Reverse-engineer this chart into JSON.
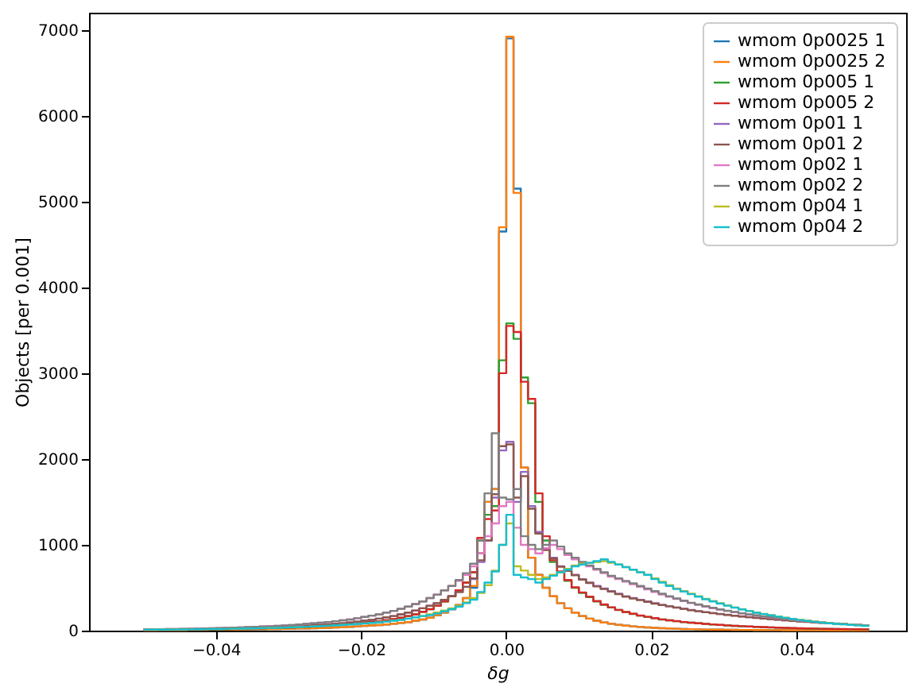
{
  "chart_data": {
    "type": "histogram",
    "xlabel": "δg",
    "ylabel": "Objects [per 0.001]",
    "bins": [
      -0.05,
      -0.049,
      -0.048,
      -0.047,
      -0.046,
      -0.045,
      -0.044,
      -0.043,
      -0.042,
      -0.041,
      -0.04,
      -0.039,
      -0.038,
      -0.037,
      -0.036,
      -0.035,
      -0.034,
      -0.033,
      -0.032,
      -0.031,
      -0.03,
      -0.029,
      -0.028,
      -0.027,
      -0.026,
      -0.025,
      -0.024,
      -0.023,
      -0.022,
      -0.021,
      -0.02,
      -0.019,
      -0.018,
      -0.017,
      -0.016,
      -0.015,
      -0.014,
      -0.013,
      -0.012,
      -0.011,
      -0.01,
      -0.009,
      -0.008,
      -0.007,
      -0.006,
      -0.005,
      -0.004,
      -0.003,
      -0.002,
      -0.001,
      0.0,
      0.001,
      0.002,
      0.003,
      0.004,
      0.005,
      0.006,
      0.007,
      0.008,
      0.009,
      0.01,
      0.011,
      0.012,
      0.013,
      0.014,
      0.015,
      0.016,
      0.017,
      0.018,
      0.019,
      0.02,
      0.021,
      0.022,
      0.023,
      0.024,
      0.025,
      0.026,
      0.027,
      0.028,
      0.029,
      0.03,
      0.031,
      0.032,
      0.033,
      0.034,
      0.035,
      0.036,
      0.037,
      0.038,
      0.039,
      0.04,
      0.041,
      0.042,
      0.043,
      0.044,
      0.045,
      0.046,
      0.047,
      0.048,
      0.049,
      0.05
    ],
    "series": [
      {
        "name": "wmom 0p0025 1",
        "color": "#1f77b4",
        "values": [
          5,
          5,
          6,
          6,
          7,
          7,
          8,
          8,
          9,
          10,
          10,
          11,
          12,
          13,
          14,
          15,
          16,
          18,
          19,
          20,
          22,
          24,
          26,
          28,
          30,
          33,
          36,
          40,
          44,
          50,
          55,
          60,
          65,
          72,
          80,
          90,
          100,
          115,
          130,
          150,
          180,
          210,
          250,
          300,
          380,
          500,
          900,
          1500,
          1650,
          4650,
          6900,
          5150,
          1900,
          850,
          650,
          500,
          400,
          320,
          260,
          210,
          170,
          140,
          115,
          95,
          80,
          68,
          58,
          50,
          43,
          37,
          32,
          28,
          25,
          22,
          19,
          17,
          15,
          13,
          12,
          11,
          10,
          9,
          8,
          8,
          7,
          7,
          6,
          6,
          5,
          5,
          5,
          4,
          4,
          4,
          3,
          3,
          3,
          3,
          2,
          2
        ]
      },
      {
        "name": "wmom 0p0025 2",
        "color": "#ff7f0e",
        "values": [
          5,
          5,
          6,
          6,
          7,
          7,
          8,
          8,
          9,
          10,
          10,
          11,
          12,
          13,
          14,
          15,
          16,
          18,
          19,
          20,
          22,
          24,
          26,
          28,
          30,
          33,
          36,
          40,
          44,
          50,
          55,
          60,
          65,
          72,
          80,
          90,
          100,
          115,
          130,
          150,
          180,
          210,
          250,
          300,
          380,
          520,
          900,
          1500,
          1650,
          4700,
          6920,
          5100,
          1900,
          850,
          650,
          500,
          400,
          320,
          260,
          210,
          170,
          140,
          115,
          95,
          80,
          68,
          58,
          50,
          43,
          37,
          32,
          28,
          25,
          22,
          19,
          17,
          15,
          13,
          12,
          11,
          10,
          9,
          8,
          8,
          7,
          7,
          6,
          6,
          5,
          5,
          5,
          4,
          4,
          4,
          3,
          3,
          3,
          3,
          2,
          2
        ]
      },
      {
        "name": "wmom 0p005 1",
        "color": "#2ca02c",
        "values": [
          8,
          9,
          10,
          10,
          11,
          12,
          13,
          14,
          15,
          16,
          17,
          18,
          20,
          21,
          23,
          25,
          27,
          29,
          31,
          34,
          37,
          40,
          44,
          48,
          52,
          57,
          62,
          68,
          75,
          82,
          90,
          100,
          110,
          120,
          135,
          150,
          170,
          190,
          220,
          250,
          290,
          340,
          400,
          470,
          560,
          680,
          1050,
          1350,
          1450,
          3150,
          3580,
          3400,
          2950,
          2650,
          1500,
          1050,
          800,
          680,
          580,
          500,
          440,
          390,
          340,
          300,
          270,
          240,
          215,
          195,
          175,
          160,
          145,
          130,
          120,
          110,
          100,
          92,
          85,
          78,
          72,
          66,
          60,
          55,
          51,
          47,
          43,
          40,
          37,
          34,
          31,
          29,
          27,
          25,
          23,
          21,
          20,
          18,
          17,
          16,
          15,
          14
        ]
      },
      {
        "name": "wmom 0p005 2",
        "color": "#d62728",
        "values": [
          8,
          9,
          10,
          10,
          11,
          12,
          13,
          14,
          15,
          16,
          17,
          18,
          20,
          21,
          23,
          25,
          27,
          29,
          31,
          34,
          37,
          40,
          44,
          48,
          52,
          57,
          62,
          68,
          75,
          82,
          90,
          100,
          110,
          120,
          135,
          150,
          170,
          190,
          220,
          250,
          290,
          340,
          400,
          470,
          560,
          680,
          1080,
          1300,
          1400,
          3000,
          3550,
          3480,
          2900,
          2700,
          1600,
          1100,
          820,
          690,
          590,
          505,
          445,
          395,
          345,
          305,
          272,
          242,
          217,
          196,
          176,
          161,
          146,
          131,
          121,
          111,
          101,
          93,
          86,
          79,
          73,
          67,
          61,
          56,
          52,
          48,
          44,
          41,
          38,
          35,
          32,
          30,
          28,
          26,
          24,
          22,
          21,
          19,
          18,
          17,
          16,
          15
        ]
      },
      {
        "name": "wmom 0p01 1",
        "color": "#9467bd",
        "values": [
          12,
          13,
          14,
          15,
          16,
          17,
          18,
          19,
          20,
          22,
          23,
          25,
          27,
          29,
          31,
          33,
          36,
          39,
          42,
          45,
          49,
          53,
          57,
          62,
          67,
          73,
          80,
          87,
          95,
          105,
          115,
          125,
          140,
          155,
          170,
          190,
          210,
          235,
          260,
          290,
          320,
          360,
          400,
          450,
          510,
          600,
          800,
          1050,
          1550,
          2100,
          2200,
          1500,
          1850,
          1450,
          1150,
          950,
          850,
          750,
          700,
          650,
          600,
          560,
          520,
          490,
          460,
          430,
          400,
          380,
          360,
          340,
          320,
          300,
          285,
          270,
          255,
          240,
          228,
          216,
          205,
          195,
          185,
          175,
          166,
          158,
          150,
          142,
          135,
          128,
          121,
          115,
          109,
          103,
          97,
          92,
          87,
          82,
          77,
          72,
          68,
          64
        ]
      },
      {
        "name": "wmom 0p01 2",
        "color": "#8c564b",
        "values": [
          12,
          13,
          14,
          15,
          16,
          17,
          18,
          19,
          20,
          22,
          23,
          25,
          27,
          29,
          31,
          33,
          36,
          39,
          42,
          45,
          49,
          53,
          57,
          62,
          67,
          73,
          80,
          87,
          95,
          105,
          115,
          125,
          140,
          155,
          170,
          190,
          210,
          235,
          260,
          290,
          320,
          360,
          400,
          450,
          510,
          610,
          820,
          1050,
          1590,
          2150,
          2170,
          1550,
          1800,
          1420,
          1130,
          940,
          840,
          745,
          695,
          645,
          595,
          555,
          515,
          485,
          455,
          425,
          395,
          375,
          355,
          335,
          315,
          298,
          283,
          268,
          253,
          238,
          226,
          214,
          203,
          193,
          183,
          173,
          164,
          156,
          148,
          140,
          133,
          126,
          119,
          113,
          107,
          101,
          95,
          90,
          85,
          80,
          75,
          70,
          66,
          62
        ]
      },
      {
        "name": "wmom 0p02 1",
        "color": "#e377c2",
        "values": [
          15,
          16,
          17,
          18,
          19,
          21,
          22,
          24,
          26,
          28,
          30,
          32,
          35,
          38,
          41,
          44,
          48,
          52,
          56,
          61,
          66,
          72,
          78,
          85,
          92,
          100,
          110,
          120,
          130,
          145,
          160,
          175,
          190,
          210,
          230,
          255,
          280,
          310,
          340,
          380,
          420,
          470,
          520,
          580,
          650,
          750,
          900,
          1100,
          1250,
          1450,
          1500,
          1200,
          1000,
          950,
          900,
          960,
          1000,
          950,
          880,
          830,
          790,
          750,
          710,
          670,
          630,
          600,
          570,
          540,
          510,
          480,
          450,
          420,
          395,
          370,
          345,
          320,
          300,
          280,
          262,
          245,
          230,
          215,
          200,
          188,
          176,
          165,
          155,
          145,
          135,
          126,
          118,
          110,
          102,
          95,
          88,
          82,
          76,
          70,
          65,
          60
        ]
      },
      {
        "name": "wmom 0p02 2",
        "color": "#7f7f7f",
        "values": [
          15,
          16,
          17,
          18,
          19,
          21,
          22,
          24,
          26,
          28,
          30,
          32,
          35,
          38,
          41,
          44,
          48,
          52,
          56,
          61,
          66,
          72,
          78,
          85,
          92,
          100,
          110,
          120,
          130,
          145,
          160,
          175,
          190,
          210,
          230,
          255,
          280,
          310,
          340,
          380,
          420,
          470,
          520,
          590,
          670,
          780,
          1050,
          1600,
          2300,
          1550,
          1530,
          1650,
          1100,
          1000,
          950,
          1000,
          1050,
          980,
          900,
          850,
          800,
          760,
          720,
          680,
          640,
          610,
          580,
          550,
          520,
          490,
          460,
          430,
          400,
          375,
          350,
          325,
          305,
          285,
          266,
          248,
          232,
          217,
          202,
          190,
          178,
          167,
          157,
          147,
          137,
          128,
          120,
          112,
          104,
          97,
          90,
          84,
          78,
          72,
          67,
          62
        ]
      },
      {
        "name": "wmom 0p04 1",
        "color": "#bcbd22",
        "values": [
          10,
          11,
          12,
          12,
          13,
          14,
          15,
          16,
          17,
          18,
          19,
          20,
          22,
          23,
          25,
          27,
          29,
          31,
          33,
          36,
          39,
          42,
          45,
          49,
          53,
          57,
          62,
          67,
          72,
          78,
          84,
          90,
          97,
          105,
          115,
          125,
          140,
          155,
          170,
          190,
          210,
          235,
          260,
          290,
          330,
          380,
          440,
          530,
          700,
          1000,
          1250,
          750,
          700,
          650,
          600,
          620,
          650,
          680,
          720,
          760,
          780,
          790,
          800,
          810,
          790,
          770,
          740,
          710,
          680,
          650,
          610,
          570,
          530,
          490,
          460,
          430,
          400,
          370,
          345,
          320,
          295,
          270,
          250,
          230,
          210,
          195,
          180,
          165,
          150,
          138,
          126,
          115,
          105,
          96,
          88,
          80,
          74,
          68,
          62,
          57
        ]
      },
      {
        "name": "wmom 0p04 2",
        "color": "#17becf",
        "values": [
          10,
          11,
          12,
          12,
          13,
          14,
          15,
          16,
          17,
          18,
          19,
          20,
          22,
          23,
          25,
          27,
          29,
          31,
          33,
          36,
          39,
          42,
          45,
          49,
          53,
          57,
          62,
          67,
          72,
          78,
          84,
          90,
          97,
          105,
          115,
          125,
          140,
          155,
          170,
          180,
          200,
          225,
          250,
          280,
          320,
          360,
          450,
          560,
          690,
          1000,
          1350,
          650,
          620,
          600,
          560,
          600,
          640,
          680,
          710,
          750,
          770,
          790,
          810,
          830,
          800,
          770,
          740,
          710,
          680,
          650,
          600,
          560,
          520,
          485,
          455,
          425,
          395,
          365,
          340,
          315,
          290,
          268,
          248,
          228,
          208,
          193,
          178,
          163,
          149,
          136,
          124,
          113,
          103,
          94,
          86,
          79,
          73,
          67,
          61,
          56
        ]
      }
    ],
    "xlim": [
      -0.0575,
      0.0551
    ],
    "xticks": [
      {
        "value": -0.04,
        "label": "−0.04"
      },
      {
        "value": -0.02,
        "label": "−0.02"
      },
      {
        "value": 0.0,
        "label": "0.00"
      },
      {
        "value": 0.02,
        "label": "0.02"
      },
      {
        "value": 0.04,
        "label": "0.04"
      }
    ],
    "ylim": [
      0,
      7200
    ],
    "yticks": [
      0,
      1000,
      2000,
      3000,
      4000,
      5000,
      6000,
      7000
    ],
    "grid": false,
    "legend": "top right",
    "line_style": "solid"
  }
}
